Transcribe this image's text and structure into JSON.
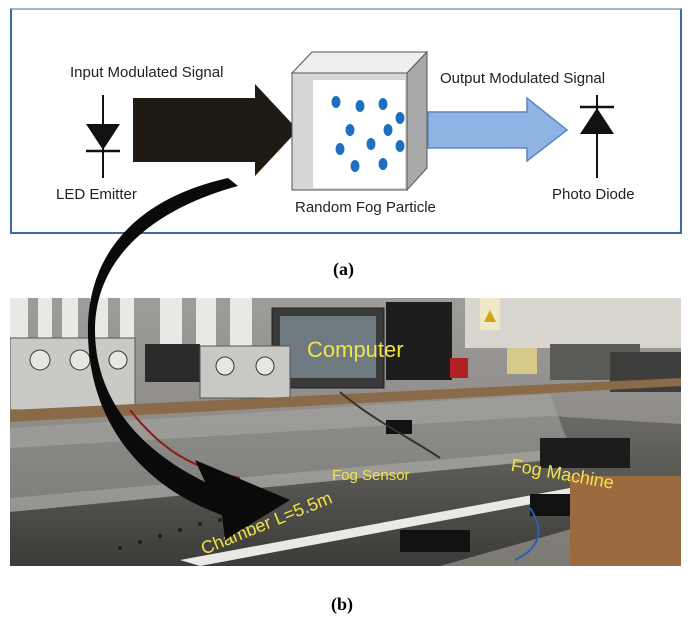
{
  "panel_a": {
    "input_label": "Input Modulated Signal",
    "output_label": "Output Modulated Signal",
    "emitter_label": "LED Emitter",
    "detector_label": "Photo Diode",
    "medium_label": "Random Fog Particle",
    "caption": "(a)"
  },
  "panel_b": {
    "computer_label": "Computer",
    "fog_sensor_label": "Fog Sensor",
    "fog_machine_label": "Fog Machine",
    "chamber_label": "Chamber L=5.5m",
    "caption": "(b)"
  },
  "colors": {
    "frame_border": "#3d6aa0",
    "input_arrow": "#1f1a14",
    "output_arrow": "#8fb4e3",
    "particle": "#1f6fc0",
    "label_yellow": "#f2e34a"
  }
}
